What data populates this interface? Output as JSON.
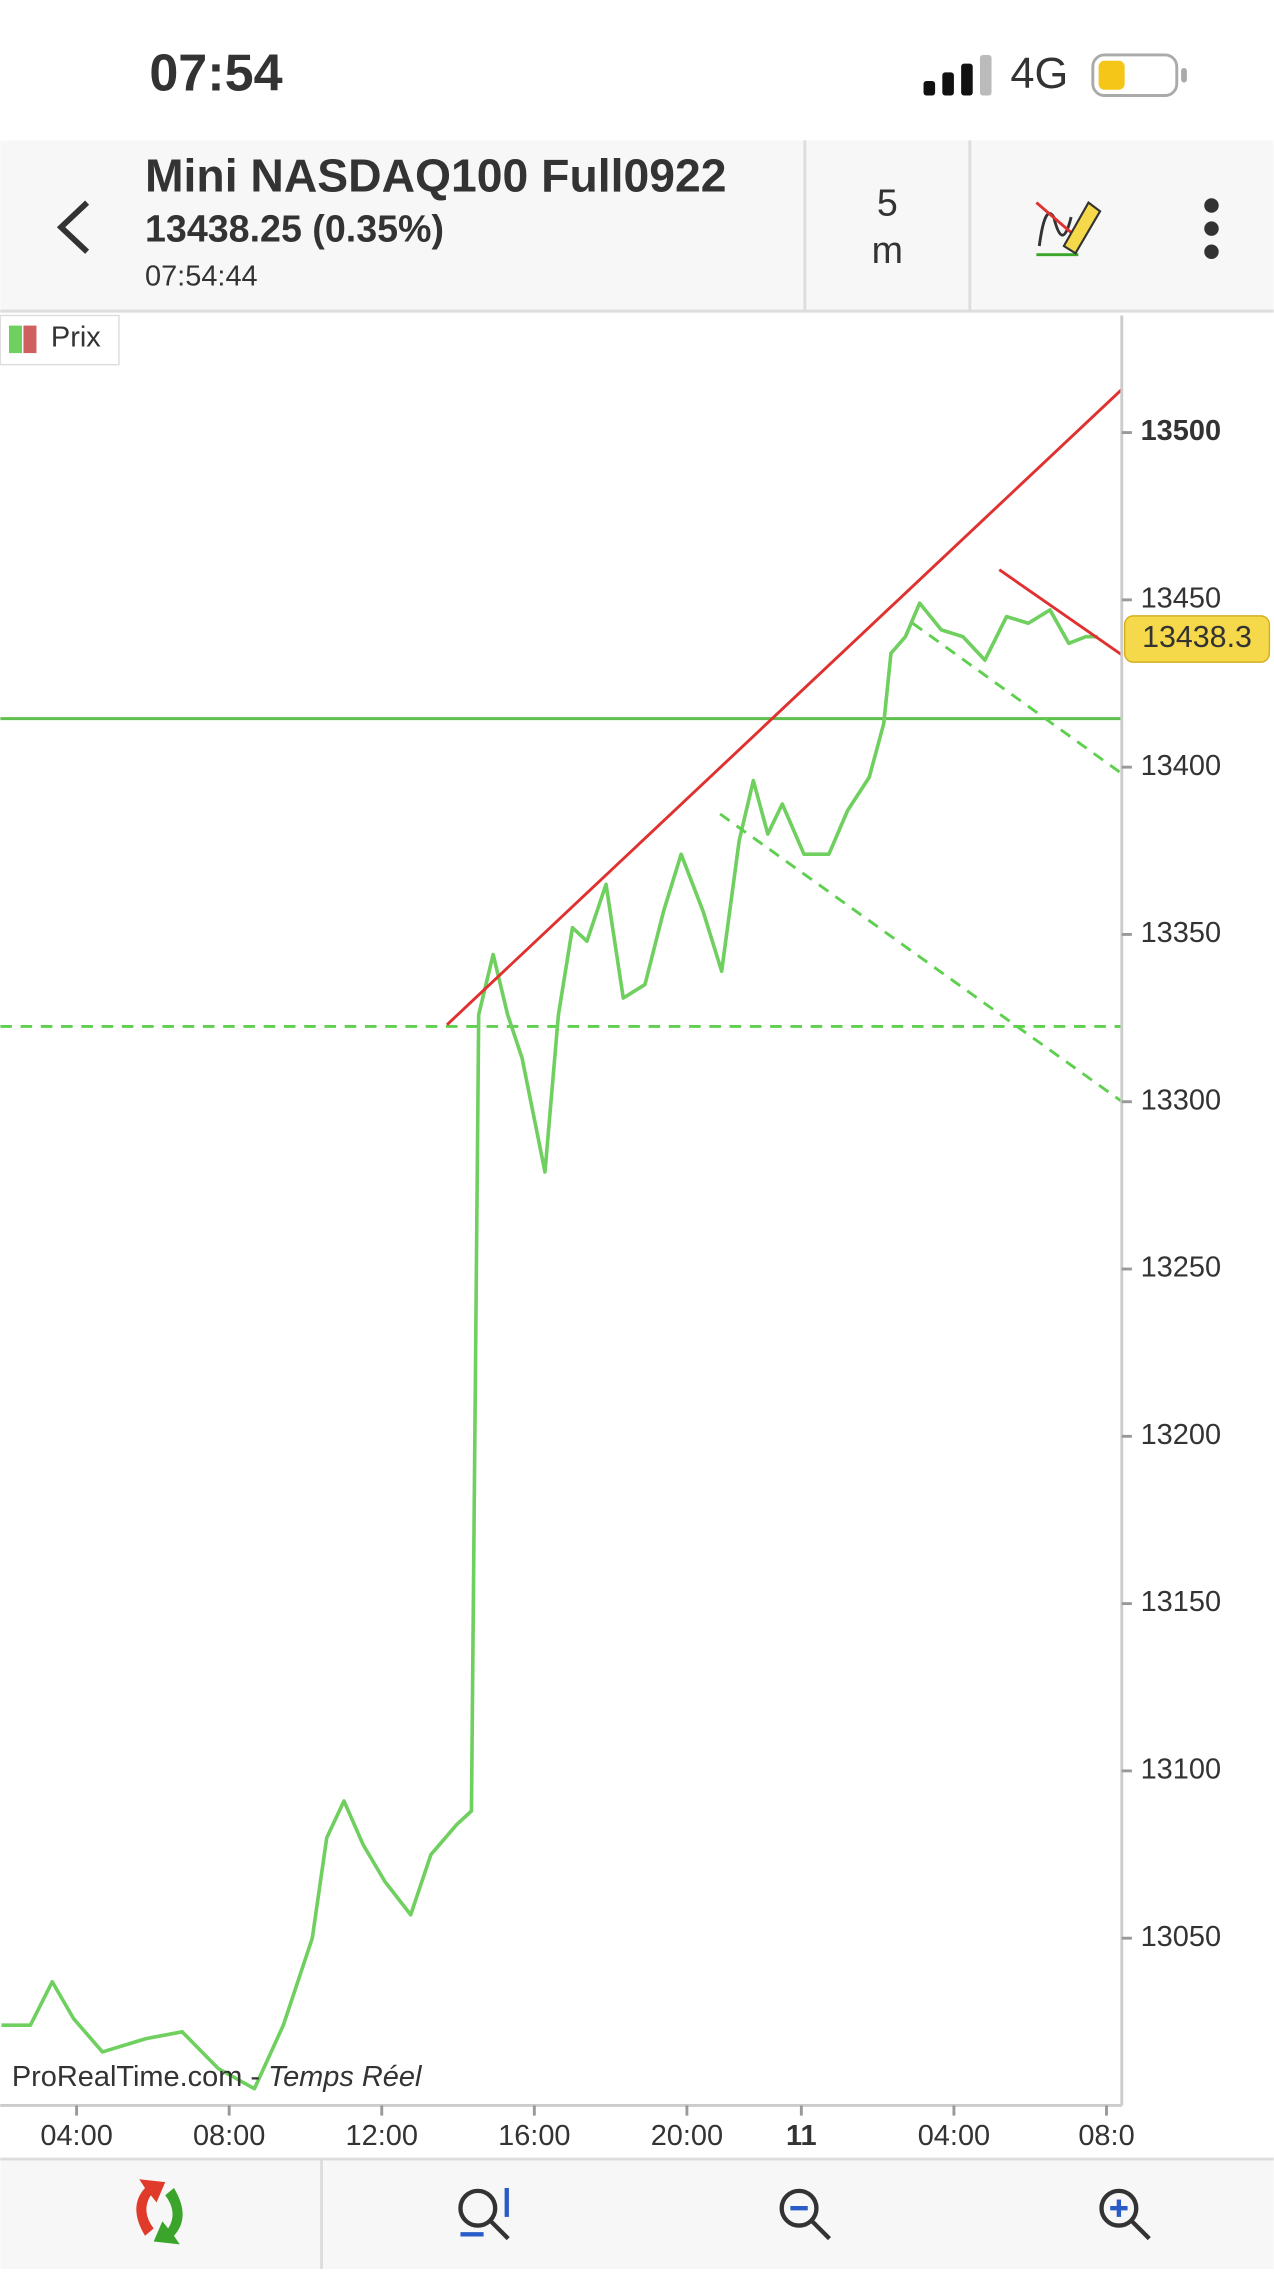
{
  "status_bar": {
    "time": "07:54",
    "network": "4G"
  },
  "header": {
    "title": "Mini NASDAQ100 Full0922",
    "quote": "13438.25 (0.35%)",
    "timestamp": "07:54:44",
    "interval_value": "5",
    "interval_unit": "m"
  },
  "watermark": {
    "site": "ProRealTime.com",
    "separator": "-",
    "mode": "Temps Réel"
  },
  "chart_data": {
    "type": "line",
    "series": [
      {
        "name": "Prix",
        "color": "#6fcf5f",
        "x": [
          -1.97,
          -1.21,
          -0.64,
          -0.08,
          0.68,
          1.82,
          2.77,
          3.72,
          4.66,
          5.42,
          6.18,
          6.56,
          7.01,
          7.51,
          8.08,
          8.76,
          9.29,
          9.97,
          10.35,
          10.54,
          10.92,
          11.3,
          11.68,
          11.98,
          12.28,
          12.63,
          13.0,
          13.38,
          13.88,
          14.33,
          14.9,
          15.39,
          15.85,
          16.42,
          16.91,
          17.37,
          17.74,
          18.12,
          18.5,
          19.07,
          19.72,
          20.21,
          20.78,
          21.16,
          21.35,
          21.73,
          22.1,
          22.67,
          23.24,
          23.81,
          24.38,
          24.95,
          25.52,
          26.01,
          26.46,
          26.77
        ],
        "values": [
          13024,
          13024,
          13037,
          13026,
          13016,
          13020,
          13022,
          13011,
          13005,
          13024,
          13050,
          13080,
          13091,
          13078,
          13067,
          13057,
          13075,
          13084,
          13088,
          13326,
          13344,
          13326,
          13313,
          13296,
          13279,
          13326,
          13352,
          13348,
          13365,
          13331,
          13335,
          13357,
          13374,
          13357,
          13339,
          13378,
          13396,
          13380,
          13389,
          13374,
          13374,
          13387,
          13397,
          13413,
          13434,
          13439,
          13449,
          13441,
          13439,
          13432,
          13445,
          13443,
          13447,
          13437,
          13439,
          13439
        ]
      }
    ],
    "xlim": [
      -2,
      27.4
    ],
    "ylim": [
      13000,
      13535
    ],
    "xticks": [
      {
        "value": 0,
        "label": "04:00"
      },
      {
        "value": 4,
        "label": "08:00"
      },
      {
        "value": 8,
        "label": "12:00"
      },
      {
        "value": 12,
        "label": "16:00"
      },
      {
        "value": 16,
        "label": "20:00"
      },
      {
        "value": 19,
        "label": "11"
      },
      {
        "value": 23,
        "label": "04:00"
      },
      {
        "value": 27,
        "label": "08:0"
      }
    ],
    "yticks": [
      13050,
      13100,
      13150,
      13200,
      13250,
      13300,
      13350,
      13400,
      13450,
      13500
    ],
    "last_price": 13438.3,
    "hlines": [
      {
        "value": 13414.5,
        "color": "#5fbf4f",
        "style": "solid"
      },
      {
        "value": 13322.5,
        "color": "#5fcf4f",
        "style": "dashed"
      }
    ],
    "trendlines": [
      {
        "x": [
          9.71,
          27.41
        ],
        "values": [
          13323,
          13513
        ],
        "color": "#e03030",
        "style": "solid"
      },
      {
        "x": [
          24.19,
          27.41
        ],
        "values": [
          13459,
          13433.5
        ],
        "color": "#e03030",
        "style": "solid"
      },
      {
        "x": [
          16.87,
          27.41
        ],
        "values": [
          13386,
          13300
        ],
        "color": "#5fcf4f",
        "style": "dashed"
      },
      {
        "x": [
          21.92,
          27.41
        ],
        "values": [
          13443,
          13398
        ],
        "color": "#5fcf4f",
        "style": "dashed"
      }
    ]
  }
}
